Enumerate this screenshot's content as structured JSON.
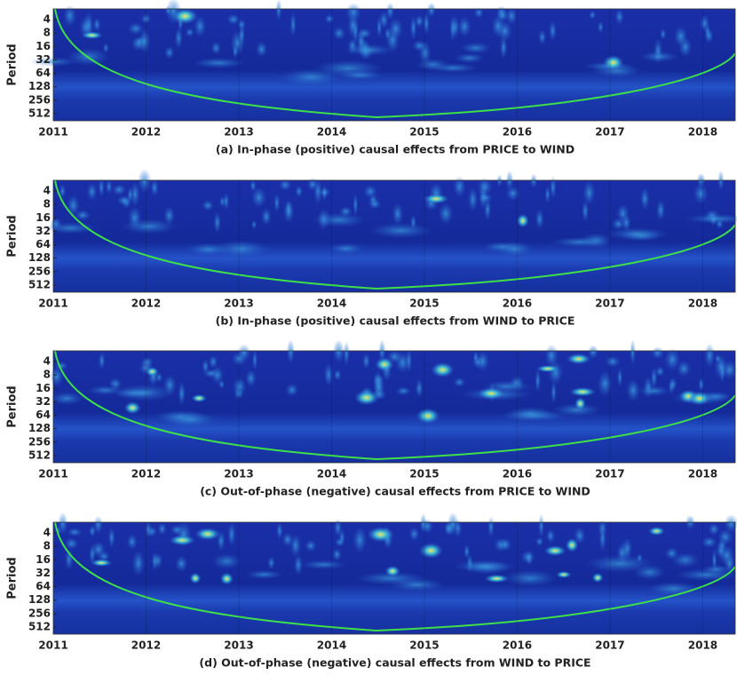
{
  "chart_data": [
    {
      "type": "heatmap",
      "caption": "(a)  In-phase (positive) causal effects from PRICE to WIND",
      "y_label": "Period",
      "xlim": [
        2011,
        2018.35
      ],
      "xticks": [
        2011,
        2012,
        2013,
        2014,
        2015,
        2016,
        2017,
        2018
      ],
      "ylim": [
        2.3,
        740
      ],
      "yticks": [
        4,
        8,
        16,
        32,
        64,
        128,
        256,
        512
      ],
      "y_log": true,
      "y_reversed": true,
      "grid": true
    },
    {
      "type": "heatmap",
      "caption": "(b) In-phase (positive) causal effects from WIND to PRICE",
      "y_label": "Period",
      "xlim": [
        2011,
        2018.35
      ],
      "xticks": [
        2011,
        2012,
        2013,
        2014,
        2015,
        2016,
        2017,
        2018
      ],
      "ylim": [
        2.3,
        740
      ],
      "yticks": [
        4,
        8,
        16,
        32,
        64,
        128,
        256,
        512
      ],
      "y_log": true,
      "y_reversed": true,
      "grid": true
    },
    {
      "type": "heatmap",
      "caption": "(c)  Out-of-phase (negative) causal effects from PRICE to WIND",
      "y_label": "Period",
      "xlim": [
        2011,
        2018.35
      ],
      "xticks": [
        2011,
        2012,
        2013,
        2014,
        2015,
        2016,
        2017,
        2018
      ],
      "ylim": [
        2.3,
        740
      ],
      "yticks": [
        4,
        8,
        16,
        32,
        64,
        128,
        256,
        512
      ],
      "y_log": true,
      "y_reversed": true,
      "grid": true
    },
    {
      "type": "heatmap",
      "caption": "(d) Out-of-phase (negative) causal effects from WIND to PRICE",
      "y_label": "Period",
      "xlim": [
        2011,
        2018.35
      ],
      "xticks": [
        2011,
        2012,
        2013,
        2014,
        2015,
        2016,
        2017,
        2018
      ],
      "ylim": [
        2.3,
        740
      ],
      "yticks": [
        4,
        8,
        16,
        32,
        64,
        128,
        256,
        512
      ],
      "y_log": true,
      "y_reversed": true,
      "grid": true
    }
  ]
}
